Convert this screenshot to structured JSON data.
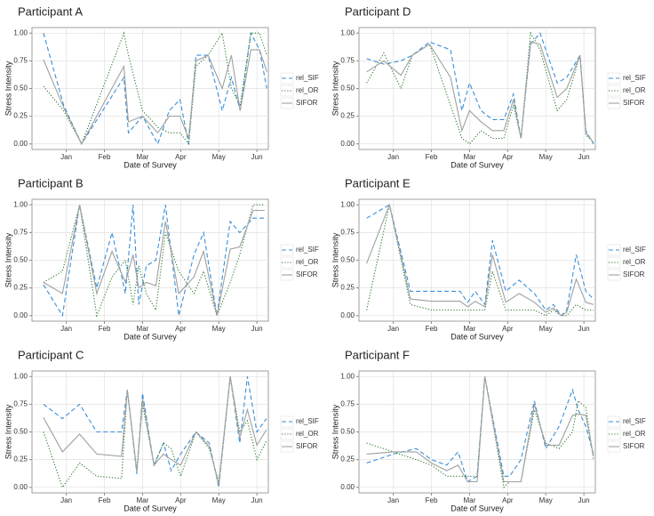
{
  "chart_data": [
    {
      "type": "line",
      "title": "Participant A",
      "xlabel": "Date of Survey",
      "ylabel": "Stress Intensity",
      "x": [
        0.4,
        0.93,
        1.4,
        2.51,
        2.63,
        3.0,
        3.4,
        3.7,
        3.98,
        4.21,
        4.4,
        4.72,
        5.09,
        5.33,
        5.56,
        5.84,
        6.07,
        6.26
      ],
      "series": [
        {
          "name": "rel_SIF",
          "color": "#3a8fd9",
          "linestyle": "dashed",
          "values": [
            1.0,
            0.35,
            0.0,
            0.6,
            0.1,
            0.25,
            0.0,
            0.3,
            0.4,
            0.0,
            0.8,
            0.8,
            0.3,
            0.6,
            0.3,
            1.0,
            0.85,
            0.5
          ]
        },
        {
          "name": "rel_OR",
          "color": "#2a7a2a",
          "linestyle": "dotted",
          "values": [
            0.52,
            0.3,
            0.0,
            1.0,
            0.8,
            0.3,
            0.15,
            0.1,
            0.1,
            0.0,
            0.7,
            0.8,
            1.0,
            0.5,
            0.35,
            1.0,
            1.0,
            0.8
          ]
        },
        {
          "name": "SIFOR",
          "color": "#a0a0a0",
          "linestyle": "solid",
          "values": [
            0.76,
            0.33,
            0.0,
            0.7,
            0.2,
            0.25,
            0.1,
            0.25,
            0.25,
            0.05,
            0.75,
            0.8,
            0.5,
            0.8,
            0.3,
            0.85,
            0.85,
            0.65
          ]
        }
      ],
      "xlim": [
        0.1,
        6.3
      ],
      "xticks": [
        {
          "value": 1,
          "label": "Jan"
        },
        {
          "value": 2,
          "label": "Feb"
        },
        {
          "value": 3,
          "label": "Mar"
        },
        {
          "value": 4,
          "label": "Apr"
        },
        {
          "value": 5,
          "label": "May"
        },
        {
          "value": 6,
          "label": "Jun"
        }
      ],
      "ylim": [
        -0.05,
        1.05
      ],
      "yticks": [
        {
          "value": 0,
          "label": "0.00"
        },
        {
          "value": 0.25,
          "label": "0.25"
        },
        {
          "value": 0.5,
          "label": "0.50"
        },
        {
          "value": 0.75,
          "label": "0.75"
        },
        {
          "value": 1,
          "label": "1.00"
        }
      ],
      "grid": true,
      "legend": "right"
    },
    {
      "type": "line",
      "title": "Participant B",
      "xlabel": "Date of Survey",
      "ylabel": "Stress Intensity",
      "x": [
        0.4,
        0.9,
        1.35,
        1.8,
        2.2,
        2.55,
        2.75,
        2.9,
        3.1,
        3.35,
        3.6,
        3.95,
        4.35,
        4.6,
        4.95,
        5.3,
        5.55,
        5.9,
        6.2
      ],
      "series": [
        {
          "name": "rel_SIF",
          "color": "#3a8fd9",
          "linestyle": "dashed",
          "values": [
            0.28,
            0.0,
            1.0,
            0.25,
            0.75,
            0.2,
            1.0,
            0.1,
            0.45,
            0.5,
            1.0,
            0.0,
            0.55,
            0.75,
            0.0,
            0.85,
            0.75,
            0.88,
            0.88
          ]
        },
        {
          "name": "rel_OR",
          "color": "#2a7a2a",
          "linestyle": "dotted",
          "values": [
            0.3,
            0.4,
            1.0,
            0.0,
            0.35,
            0.5,
            0.1,
            0.45,
            0.2,
            0.05,
            0.75,
            0.4,
            0.2,
            0.4,
            0.0,
            0.3,
            0.55,
            1.0,
            1.0
          ]
        },
        {
          "name": "SIFOR",
          "color": "#a0a0a0",
          "linestyle": "solid",
          "values": [
            0.3,
            0.2,
            1.0,
            0.2,
            0.58,
            0.3,
            0.55,
            0.25,
            0.3,
            0.27,
            0.85,
            0.2,
            0.35,
            0.58,
            0.0,
            0.6,
            0.62,
            0.95,
            0.95
          ]
        }
      ],
      "xlim": [
        0.1,
        6.3
      ],
      "xticks": [
        {
          "value": 1,
          "label": "Jan"
        },
        {
          "value": 2,
          "label": "Feb"
        },
        {
          "value": 3,
          "label": "Mar"
        },
        {
          "value": 4,
          "label": "Apr"
        },
        {
          "value": 5,
          "label": "May"
        },
        {
          "value": 6,
          "label": "Jun"
        }
      ],
      "ylim": [
        -0.05,
        1.05
      ],
      "yticks": [
        {
          "value": 0,
          "label": "0.00"
        },
        {
          "value": 0.25,
          "label": "0.25"
        },
        {
          "value": 0.5,
          "label": "0.50"
        },
        {
          "value": 0.75,
          "label": "0.75"
        },
        {
          "value": 1,
          "label": "1.00"
        }
      ],
      "grid": true,
      "legend": "right"
    },
    {
      "type": "line",
      "title": "Participant C",
      "xlabel": "Date of Survey",
      "ylabel": "Stress Intensity",
      "x": [
        0.4,
        0.9,
        1.35,
        1.8,
        2.45,
        2.6,
        2.85,
        3.0,
        3.3,
        3.55,
        3.75,
        4.0,
        4.4,
        4.75,
        5.0,
        5.3,
        5.55,
        5.75,
        6.0,
        6.25
      ],
      "series": [
        {
          "name": "rel_SIF",
          "color": "#3a8fd9",
          "linestyle": "dashed",
          "values": [
            0.75,
            0.62,
            0.75,
            0.5,
            0.5,
            0.88,
            0.12,
            0.85,
            0.2,
            0.4,
            0.15,
            0.3,
            0.5,
            0.4,
            0.0,
            1.0,
            0.4,
            1.0,
            0.5,
            0.62
          ]
        },
        {
          "name": "rel_OR",
          "color": "#2a7a2a",
          "linestyle": "dotted",
          "values": [
            0.5,
            0.0,
            0.22,
            0.1,
            0.08,
            0.88,
            0.15,
            0.75,
            0.2,
            0.4,
            0.35,
            0.1,
            0.5,
            0.35,
            0.05,
            1.0,
            0.5,
            0.6,
            0.25,
            0.42
          ]
        },
        {
          "name": "SIFOR",
          "color": "#a0a0a0",
          "linestyle": "solid",
          "values": [
            0.63,
            0.32,
            0.48,
            0.3,
            0.28,
            0.88,
            0.14,
            0.8,
            0.2,
            0.3,
            0.25,
            0.2,
            0.5,
            0.37,
            0.02,
            1.0,
            0.45,
            0.7,
            0.38,
            0.52
          ]
        }
      ],
      "xlim": [
        0.1,
        6.3
      ],
      "xticks": [
        {
          "value": 1,
          "label": "Jan"
        },
        {
          "value": 2,
          "label": "Feb"
        },
        {
          "value": 3,
          "label": "Mar"
        },
        {
          "value": 4,
          "label": "Apr"
        },
        {
          "value": 5,
          "label": "May"
        },
        {
          "value": 6,
          "label": "Jun"
        }
      ],
      "ylim": [
        -0.05,
        1.05
      ],
      "yticks": [
        {
          "value": 0,
          "label": "0.00"
        },
        {
          "value": 0.25,
          "label": "0.25"
        },
        {
          "value": 0.5,
          "label": "0.50"
        },
        {
          "value": 0.75,
          "label": "0.75"
        },
        {
          "value": 1,
          "label": "1.00"
        }
      ],
      "grid": true,
      "legend": "right"
    },
    {
      "type": "line",
      "title": "Participant D",
      "xlabel": "Date of Survey",
      "ylabel": "Stress Intensity",
      "x": [
        0.3,
        0.75,
        1.2,
        1.5,
        1.95,
        2.5,
        2.8,
        3.0,
        3.3,
        3.6,
        3.9,
        4.15,
        4.35,
        4.6,
        4.85,
        5.3,
        5.55,
        5.9,
        6.05,
        6.25
      ],
      "series": [
        {
          "name": "rel_SIF",
          "color": "#3a8fd9",
          "linestyle": "dashed",
          "values": [
            0.77,
            0.72,
            0.75,
            0.8,
            0.92,
            0.85,
            0.3,
            0.55,
            0.3,
            0.22,
            0.22,
            0.45,
            0.05,
            0.9,
            1.0,
            0.55,
            0.6,
            0.8,
            0.12,
            0.0
          ]
        },
        {
          "name": "rel_OR",
          "color": "#2a7a2a",
          "linestyle": "dotted",
          "values": [
            0.55,
            0.82,
            0.5,
            0.8,
            0.9,
            0.35,
            0.05,
            0.0,
            0.12,
            0.05,
            0.05,
            0.35,
            0.05,
            1.0,
            0.85,
            0.3,
            0.4,
            0.8,
            0.08,
            0.02
          ]
        },
        {
          "name": "SIFOR",
          "color": "#a0a0a0",
          "linestyle": "solid",
          "values": [
            0.65,
            0.75,
            0.62,
            0.8,
            0.9,
            0.6,
            0.12,
            0.3,
            0.2,
            0.12,
            0.12,
            0.4,
            0.05,
            0.92,
            0.9,
            0.42,
            0.5,
            0.8,
            0.1,
            0.01
          ]
        }
      ],
      "xlim": [
        0.1,
        6.3
      ],
      "xticks": [
        {
          "value": 1,
          "label": "Jan"
        },
        {
          "value": 2,
          "label": "Feb"
        },
        {
          "value": 3,
          "label": "Mar"
        },
        {
          "value": 4,
          "label": "Apr"
        },
        {
          "value": 5,
          "label": "May"
        },
        {
          "value": 6,
          "label": "Jun"
        }
      ],
      "ylim": [
        -0.05,
        1.05
      ],
      "yticks": [
        {
          "value": 0,
          "label": "0.00"
        },
        {
          "value": 0.25,
          "label": "0.25"
        },
        {
          "value": 0.5,
          "label": "0.50"
        },
        {
          "value": 0.75,
          "label": "0.75"
        },
        {
          "value": 1,
          "label": "1.00"
        }
      ],
      "grid": true,
      "legend": "right"
    },
    {
      "type": "line",
      "title": "Participant E",
      "xlabel": "Date of Survey",
      "ylabel": "Stress Intensity",
      "x": [
        0.3,
        0.9,
        1.45,
        2.0,
        2.45,
        2.75,
        2.95,
        3.15,
        3.4,
        3.6,
        3.95,
        4.3,
        4.7,
        5.0,
        5.2,
        5.4,
        5.55,
        5.8,
        6.05,
        6.25
      ],
      "series": [
        {
          "name": "rel_SIF",
          "color": "#3a8fd9",
          "linestyle": "dashed",
          "values": [
            0.88,
            1.0,
            0.22,
            0.22,
            0.22,
            0.22,
            0.12,
            0.22,
            0.1,
            0.68,
            0.22,
            0.32,
            0.2,
            0.05,
            0.1,
            0.0,
            0.05,
            0.55,
            0.22,
            0.15
          ]
        },
        {
          "name": "rel_OR",
          "color": "#2a7a2a",
          "linestyle": "dotted",
          "values": [
            0.05,
            1.0,
            0.1,
            0.05,
            0.05,
            0.05,
            0.05,
            0.05,
            0.05,
            0.4,
            0.05,
            0.05,
            0.05,
            0.0,
            0.05,
            0.0,
            0.0,
            0.1,
            0.05,
            0.05
          ]
        },
        {
          "name": "SIFOR",
          "color": "#a0a0a0",
          "linestyle": "solid",
          "values": [
            0.47,
            1.0,
            0.15,
            0.13,
            0.13,
            0.13,
            0.08,
            0.13,
            0.08,
            0.55,
            0.12,
            0.2,
            0.12,
            0.03,
            0.07,
            0.0,
            0.03,
            0.33,
            0.12,
            0.1
          ]
        }
      ],
      "xlim": [
        0.1,
        6.3
      ],
      "xticks": [
        {
          "value": 1,
          "label": "Jan"
        },
        {
          "value": 2,
          "label": "Feb"
        },
        {
          "value": 3,
          "label": "Mar"
        },
        {
          "value": 4,
          "label": "Apr"
        },
        {
          "value": 5,
          "label": "May"
        },
        {
          "value": 6,
          "label": "Jun"
        }
      ],
      "ylim": [
        -0.05,
        1.05
      ],
      "yticks": [
        {
          "value": 0,
          "label": "0.00"
        },
        {
          "value": 0.25,
          "label": "0.25"
        },
        {
          "value": 0.5,
          "label": "0.50"
        },
        {
          "value": 0.75,
          "label": "0.75"
        },
        {
          "value": 1,
          "label": "1.00"
        }
      ],
      "grid": true,
      "legend": "right"
    },
    {
      "type": "line",
      "title": "Participant F",
      "xlabel": "Date of Survey",
      "ylabel": "Stress Intensity",
      "x": [
        0.3,
        1.0,
        1.6,
        2.0,
        2.4,
        2.7,
        2.95,
        3.2,
        3.4,
        3.9,
        4.05,
        4.35,
        4.7,
        5.0,
        5.35,
        5.7,
        5.85,
        6.05,
        6.25
      ],
      "series": [
        {
          "name": "rel_SIF",
          "color": "#3a8fd9",
          "linestyle": "dashed",
          "values": [
            0.22,
            0.3,
            0.35,
            0.25,
            0.2,
            0.32,
            0.05,
            0.1,
            1.0,
            0.1,
            0.1,
            0.25,
            0.78,
            0.35,
            0.55,
            0.88,
            0.7,
            0.55,
            0.3
          ]
        },
        {
          "name": "rel_OR",
          "color": "#2a7a2a",
          "linestyle": "dotted",
          "values": [
            0.4,
            0.32,
            0.25,
            0.2,
            0.1,
            0.1,
            0.1,
            0.1,
            1.0,
            0.0,
            0.05,
            0.05,
            0.7,
            0.4,
            0.35,
            0.5,
            0.78,
            0.72,
            0.25
          ]
        },
        {
          "name": "SIFOR",
          "color": "#a0a0a0",
          "linestyle": "solid",
          "values": [
            0.3,
            0.32,
            0.32,
            0.22,
            0.15,
            0.2,
            0.05,
            0.05,
            1.0,
            0.05,
            0.05,
            0.05,
            0.75,
            0.38,
            0.38,
            0.65,
            0.66,
            0.65,
            0.28
          ]
        }
      ],
      "xlim": [
        0.1,
        6.3
      ],
      "xticks": [
        {
          "value": 1,
          "label": "Jan"
        },
        {
          "value": 2,
          "label": "Feb"
        },
        {
          "value": 3,
          "label": "Mar"
        },
        {
          "value": 4,
          "label": "Apr"
        },
        {
          "value": 5,
          "label": "May"
        },
        {
          "value": 6,
          "label": "Jun"
        }
      ],
      "ylim": [
        -0.05,
        1.05
      ],
      "yticks": [
        {
          "value": 0,
          "label": "0.00"
        },
        {
          "value": 0.25,
          "label": "0.25"
        },
        {
          "value": 0.5,
          "label": "0.50"
        },
        {
          "value": 0.75,
          "label": "0.75"
        },
        {
          "value": 1,
          "label": "1.00"
        }
      ],
      "grid": true,
      "legend": "right"
    }
  ]
}
